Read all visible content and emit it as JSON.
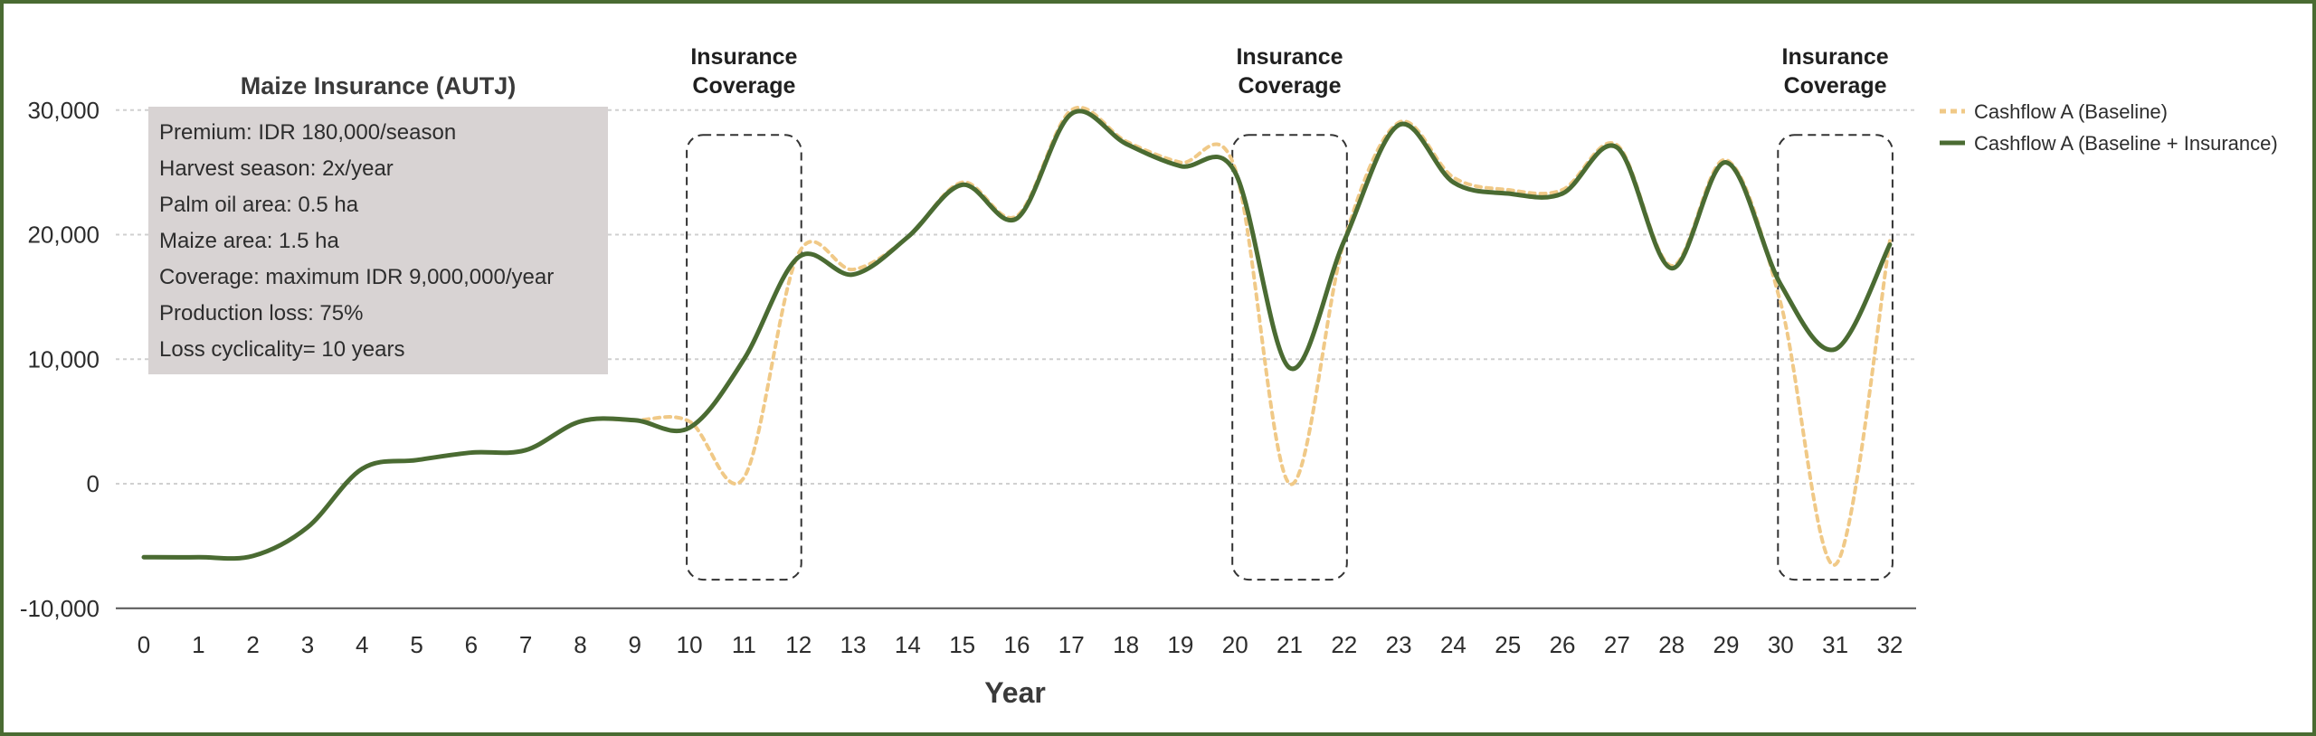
{
  "chart_data": {
    "type": "line",
    "xlabel": "Year",
    "ylabel": "",
    "ylim": [
      -10000,
      30000
    ],
    "yticks": [
      {
        "value": -10000,
        "label": "-10,000"
      },
      {
        "value": 0,
        "label": "0"
      },
      {
        "value": 10000,
        "label": "10,000"
      },
      {
        "value": 20000,
        "label": "20,000"
      },
      {
        "value": 30000,
        "label": "30,000"
      }
    ],
    "x": [
      0,
      1,
      2,
      3,
      4,
      5,
      6,
      7,
      8,
      9,
      10,
      11,
      12,
      13,
      14,
      15,
      16,
      17,
      18,
      19,
      20,
      21,
      22,
      23,
      24,
      25,
      26,
      27,
      28,
      29,
      30,
      31,
      32
    ],
    "grid": "horizontal dotted",
    "legend_position": "right",
    "series": [
      {
        "name": "Cashflow A (Baseline)",
        "color": "#f0c987",
        "style": "dashed",
        "values": [
          -5900,
          -5900,
          -5800,
          -3500,
          1200,
          1900,
          2500,
          2700,
          5000,
          5100,
          5000,
          500,
          18500,
          17200,
          19800,
          24200,
          21500,
          30000,
          27500,
          25800,
          25300,
          0,
          19500,
          29000,
          24600,
          23600,
          23600,
          27200,
          17500,
          26000,
          14500,
          -6500,
          19500
        ]
      },
      {
        "name": "Cashflow A (Baseline + Insurance)",
        "color": "#4a6b32",
        "style": "solid",
        "values": [
          -5900,
          -5900,
          -5800,
          -3500,
          1200,
          1900,
          2500,
          2700,
          5000,
          5100,
          4500,
          10000,
          18200,
          16800,
          19800,
          24000,
          21300,
          29700,
          27300,
          25500,
          25000,
          9300,
          19500,
          28800,
          24200,
          23300,
          23300,
          27000,
          17300,
          25800,
          16000,
          10800,
          19200
        ]
      }
    ],
    "coverage_windows": [
      {
        "label": "Insurance Coverage",
        "x_start": 10,
        "x_end": 12,
        "y_top": 28000,
        "y_bottom": -7700
      },
      {
        "label": "Insurance Coverage",
        "x_start": 20,
        "x_end": 22,
        "y_top": 28000,
        "y_bottom": -7700
      },
      {
        "label": "Insurance Coverage",
        "x_start": 30,
        "x_end": 32,
        "y_top": 28000,
        "y_bottom": -7700
      }
    ],
    "info_box": {
      "title": "Maize Insurance (AUTJ)",
      "lines": [
        "Premium: IDR 180,000/season",
        "Harvest season: 2x/year",
        "Palm oil area: 0.5 ha",
        "Maize area: 1.5 ha",
        "Coverage: maximum IDR 9,000,000/year",
        "Production loss: 75%",
        "Loss cyclicality= 10 years"
      ]
    }
  },
  "colors": {
    "frame": "#4a6b32",
    "grid": "#d0d0d0",
    "info_box_bg": "#d8d3d3",
    "coverage_box": "#333333"
  }
}
